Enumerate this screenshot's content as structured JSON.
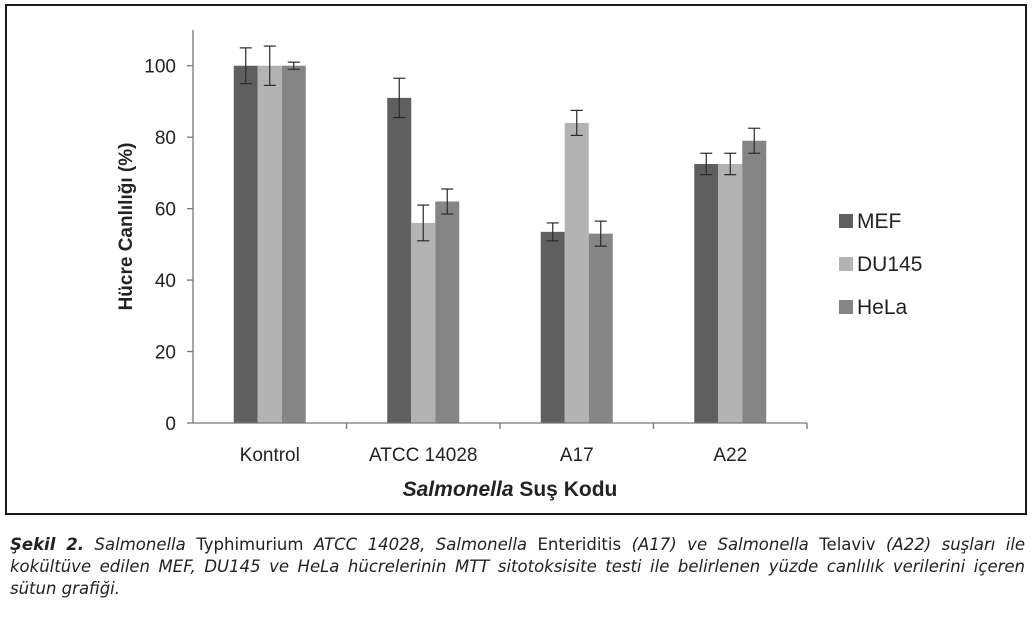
{
  "chart_data": {
    "type": "bar",
    "categories": [
      "Kontrol",
      "ATCC 14028",
      "A17",
      "A22"
    ],
    "series": [
      {
        "name": "MEF",
        "color": "#5f5f5f",
        "values": [
          100,
          91,
          53.5,
          72.5
        ],
        "errors": [
          5,
          5.5,
          2.5,
          3
        ]
      },
      {
        "name": "DU145",
        "color": "#b3b3b3",
        "values": [
          100,
          56,
          84,
          72.5
        ],
        "errors": [
          5.5,
          5,
          3.5,
          3
        ]
      },
      {
        "name": "HeLa",
        "color": "#858585",
        "values": [
          100,
          62,
          53,
          79
        ],
        "errors": [
          1,
          3.5,
          3.5,
          3.5
        ]
      }
    ],
    "ylim": [
      0,
      110
    ],
    "yticks": [
      0,
      20,
      40,
      60,
      80,
      100
    ],
    "ylabel": "Hücre Canlılığı (%)",
    "xlabel_italic": "Salmonella",
    "xlabel_rest": " Suş Kodu",
    "legend_position": "right"
  },
  "caption": {
    "label": "Şekil 2.",
    "s1": "Salmonella",
    "s2": "Typhimurium",
    "s3": "ATCC 14028,",
    "s4": "Salmonella",
    "s5": "Enteriditis",
    "s6": "(A17) ve",
    "s7": "Salmonella",
    "s8": "Telaviv",
    "s9": "(A22) suşları ile kokültüve edilen MEF, DU145 ve HeLa hücrelerinin MTT sitotoksisite testi ile belirlenen yüzde canlılık verilerini içeren sütun grafiği."
  }
}
